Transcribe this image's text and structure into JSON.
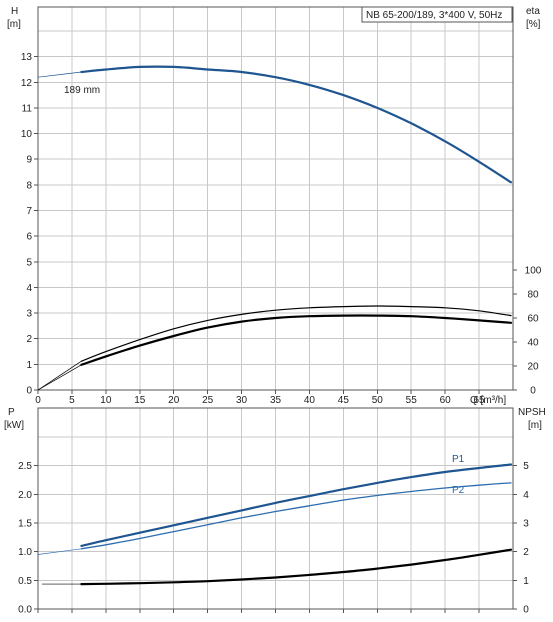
{
  "title_box": "NB 65-200/189, 3*400 V, 50Hz",
  "top_chart": {
    "left_axis_label": "H",
    "left_axis_unit": "[m]",
    "right_axis_label": "eta",
    "right_axis_unit": "[%]",
    "curve_label": "189 mm"
  },
  "bottom_chart": {
    "left_axis_label": "P",
    "left_axis_unit": "[kW]",
    "right_axis_label": "NPSH",
    "right_axis_unit": "[m]",
    "p1_label": "P1",
    "p2_label": "P2"
  },
  "x_axis_label": "Q [m³/h]",
  "colors": {
    "head_curve": "#1f5590",
    "eta_curve": "#000000",
    "p1_curve": "#1f5590",
    "p2_curve": "#2b6cb0",
    "npsh_curve": "#000000"
  },
  "chart_data": [
    {
      "type": "line",
      "title": "",
      "xlabel": "Q [m³/h]",
      "ylabel": "H [m]",
      "y2label": "eta [%]",
      "xlim": [
        0,
        70
      ],
      "ylim": [
        0,
        14
      ],
      "y2lim": [
        0,
        100
      ],
      "x_ticks": [
        0,
        5,
        10,
        15,
        20,
        25,
        30,
        35,
        40,
        45,
        50,
        55,
        60,
        65
      ],
      "y_ticks": [
        0,
        1,
        2,
        3,
        4,
        5,
        6,
        7,
        8,
        9,
        10,
        11,
        12,
        13
      ],
      "y2_ticks": [
        0,
        20,
        40,
        60,
        80,
        100
      ],
      "grid": true,
      "series": [
        {
          "name": "189 mm",
          "axis": "left",
          "x": [
            0,
            6.4,
            10,
            15,
            20,
            25,
            30,
            35,
            40,
            45,
            50,
            55,
            60,
            65,
            69.7
          ],
          "values": [
            12.2,
            12.4,
            12.5,
            12.6,
            12.6,
            12.5,
            12.4,
            12.2,
            11.9,
            11.5,
            11.0,
            10.4,
            9.7,
            8.9,
            8.1
          ]
        },
        {
          "name": "eta",
          "axis": "right",
          "x": [
            0,
            6.4,
            10,
            15,
            20,
            25,
            30,
            35,
            40,
            45,
            50,
            55,
            60,
            65,
            69.7
          ],
          "values": [
            0,
            21,
            28,
            37,
            45,
            52,
            57,
            60,
            61.5,
            62,
            62,
            61.5,
            60,
            58,
            56
          ]
        },
        {
          "name": "eta (upper)",
          "axis": "right",
          "x": [
            0,
            6.4,
            10,
            15,
            20,
            25,
            30,
            35,
            40,
            45,
            50,
            55,
            60,
            65,
            69.7
          ],
          "values": [
            0,
            24,
            32,
            42,
            51,
            58,
            63,
            66.5,
            68.5,
            69.5,
            70,
            69.5,
            68.5,
            66,
            62
          ]
        }
      ]
    },
    {
      "type": "line",
      "title": "",
      "xlabel": "",
      "ylabel": "P [kW]",
      "y2label": "NPSH [m]",
      "xlim": [
        0,
        70
      ],
      "ylim": [
        0,
        3
      ],
      "y2lim": [
        0,
        6
      ],
      "y_ticks": [
        0.0,
        0.5,
        1.0,
        1.5,
        2.0,
        2.5
      ],
      "y2_ticks": [
        0,
        1,
        2,
        3,
        4,
        5
      ],
      "grid": true,
      "series": [
        {
          "name": "P1",
          "axis": "left",
          "x": [
            6.4,
            10,
            15,
            20,
            25,
            30,
            35,
            40,
            45,
            50,
            55,
            60,
            65,
            69.7
          ],
          "values": [
            1.1,
            1.2,
            1.33,
            1.46,
            1.59,
            1.72,
            1.85,
            1.97,
            2.09,
            2.2,
            2.3,
            2.39,
            2.46,
            2.52
          ]
        },
        {
          "name": "P2",
          "axis": "left",
          "x": [
            0,
            6.4,
            10,
            15,
            20,
            25,
            30,
            35,
            40,
            45,
            50,
            55,
            60,
            65,
            69.7
          ],
          "values": [
            0.95,
            1.05,
            1.12,
            1.23,
            1.35,
            1.47,
            1.59,
            1.7,
            1.8,
            1.9,
            1.98,
            2.05,
            2.11,
            2.16,
            2.2
          ]
        },
        {
          "name": "NPSH",
          "axis": "right",
          "x": [
            6.4,
            10,
            15,
            20,
            25,
            30,
            35,
            40,
            45,
            50,
            55,
            60,
            65,
            69.7
          ],
          "values": [
            0.87,
            0.88,
            0.9,
            0.93,
            0.97,
            1.03,
            1.1,
            1.19,
            1.29,
            1.41,
            1.55,
            1.71,
            1.89,
            2.07
          ]
        }
      ]
    }
  ]
}
